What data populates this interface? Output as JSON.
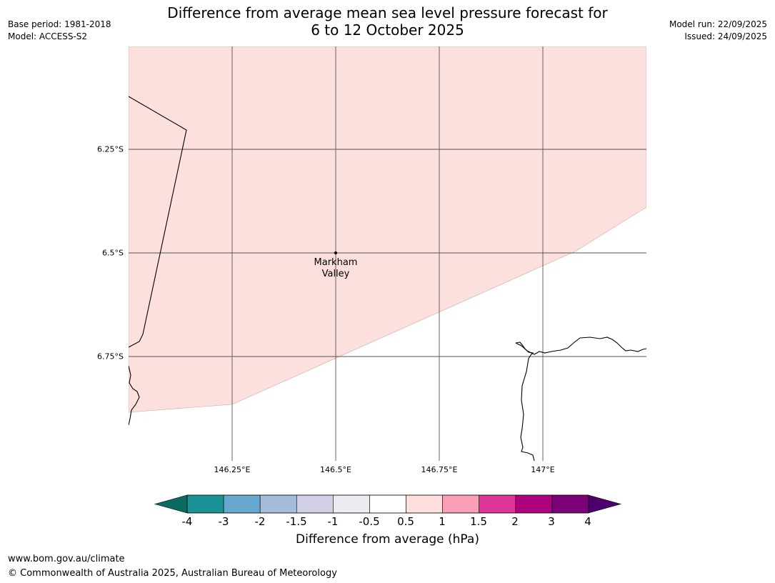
{
  "header": {
    "title_line1": "Difference from average mean sea level pressure forecast for",
    "title_line2": "6 to 12 October 2025",
    "base_period": "Base period: 1981-2018",
    "model": "Model: ACCESS-S2",
    "model_run": "Model run: 22/09/2025",
    "issued": "Issued: 24/09/2025"
  },
  "map": {
    "latitude_labels": [
      "6.25°S",
      "6.5°S",
      "6.75°S"
    ],
    "longitude_labels": [
      "146.25°E",
      "146.5°E",
      "146.75°E",
      "147°E"
    ],
    "place": {
      "name_line1": "Markham",
      "name_line2": "Valley"
    },
    "colors": {
      "land_fill": "#fce0dd",
      "grid": "#555555",
      "coast": "#000000"
    }
  },
  "colorbar": {
    "title": "Difference from average (hPa)",
    "tick_labels": [
      "-4",
      "-3",
      "-2",
      "-1.5",
      "-1",
      "-0.5",
      "0.5",
      "1",
      "1.5",
      "2",
      "3",
      "4"
    ],
    "low_extend_color": "#0a6b5e",
    "high_extend_color": "#4b006e",
    "colors": [
      "#1a9296",
      "#66a8d0",
      "#a5bcdc",
      "#d1d0e6",
      "#ecebef",
      "#ffffff",
      "#fde0dd",
      "#fa9fb5",
      "#dd3497",
      "#ae017e",
      "#7a0177"
    ]
  },
  "footer": {
    "website": "www.bom.gov.au/climate",
    "copyright": "© Commonwealth of Australia 2025, Australian Bureau of Meteorology"
  }
}
